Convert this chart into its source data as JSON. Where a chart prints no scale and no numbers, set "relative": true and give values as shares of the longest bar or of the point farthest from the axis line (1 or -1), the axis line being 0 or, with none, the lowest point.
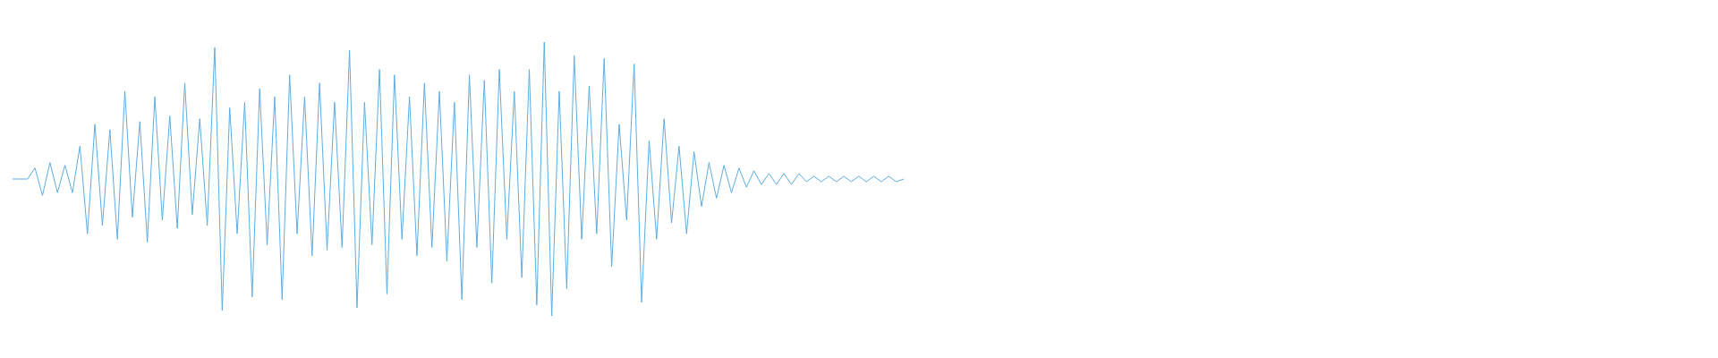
{
  "chart_data": {
    "type": "line",
    "relative": true,
    "categories": [
      null,
      null,
      null,
      null,
      null,
      null,
      null,
      null,
      null,
      null,
      null,
      null,
      null,
      null,
      null,
      null,
      null,
      null,
      null,
      null,
      null,
      null,
      null,
      null,
      null,
      null,
      null,
      null,
      null,
      null,
      null,
      null,
      null,
      null,
      null,
      null,
      null,
      null,
      null,
      null,
      null,
      null,
      null,
      null,
      null,
      null,
      null,
      null,
      null,
      null,
      null,
      null,
      null,
      null,
      null,
      null,
      null,
      null,
      null,
      null,
      null,
      null,
      null,
      null,
      null,
      null,
      null,
      null,
      null,
      null,
      null,
      null,
      null,
      null,
      null,
      null,
      null,
      null,
      null,
      null,
      null,
      null,
      null,
      null,
      null,
      null,
      null,
      null,
      null,
      null,
      null,
      null,
      null,
      null,
      null,
      null,
      null,
      null,
      null,
      null,
      null,
      null,
      null,
      null,
      null,
      null,
      null,
      null,
      null,
      null,
      null,
      null,
      null,
      null,
      null,
      null,
      null,
      null,
      null,
      null
    ],
    "series": [
      {
        "color": "#5dade2",
        "values": [
          0.5,
          0.5,
          0.5,
          0.54,
          0.44,
          0.56,
          0.45,
          0.55,
          0.45,
          0.62,
          0.3,
          0.7,
          0.33,
          0.68,
          0.28,
          0.82,
          0.36,
          0.71,
          0.27,
          0.8,
          0.35,
          0.73,
          0.32,
          0.85,
          0.37,
          0.72,
          0.33,
          0.98,
          0.02,
          0.76,
          0.3,
          0.78,
          0.07,
          0.83,
          0.26,
          0.8,
          0.06,
          0.88,
          0.3,
          0.8,
          0.22,
          0.85,
          0.24,
          0.78,
          0.25,
          0.97,
          0.03,
          0.78,
          0.26,
          0.9,
          0.08,
          0.88,
          0.28,
          0.8,
          0.22,
          0.85,
          0.25,
          0.82,
          0.2,
          0.78,
          0.06,
          0.88,
          0.25,
          0.86,
          0.12,
          0.9,
          0.28,
          0.82,
          0.14,
          0.9,
          0.04,
          1.0,
          0.0,
          0.82,
          0.1,
          0.95,
          0.28,
          0.84,
          0.3,
          0.94,
          0.18,
          0.7,
          0.35,
          0.92,
          0.05,
          0.64,
          0.28,
          0.72,
          0.34,
          0.62,
          0.3,
          0.6,
          0.4,
          0.56,
          0.43,
          0.55,
          0.45,
          0.54,
          0.47,
          0.53,
          0.48,
          0.52,
          0.48,
          0.52,
          0.48,
          0.52,
          0.49,
          0.51,
          0.49,
          0.51,
          0.49,
          0.51,
          0.49,
          0.51,
          0.49,
          0.51,
          0.49,
          0.51,
          0.49,
          0.5
        ]
      }
    ]
  }
}
